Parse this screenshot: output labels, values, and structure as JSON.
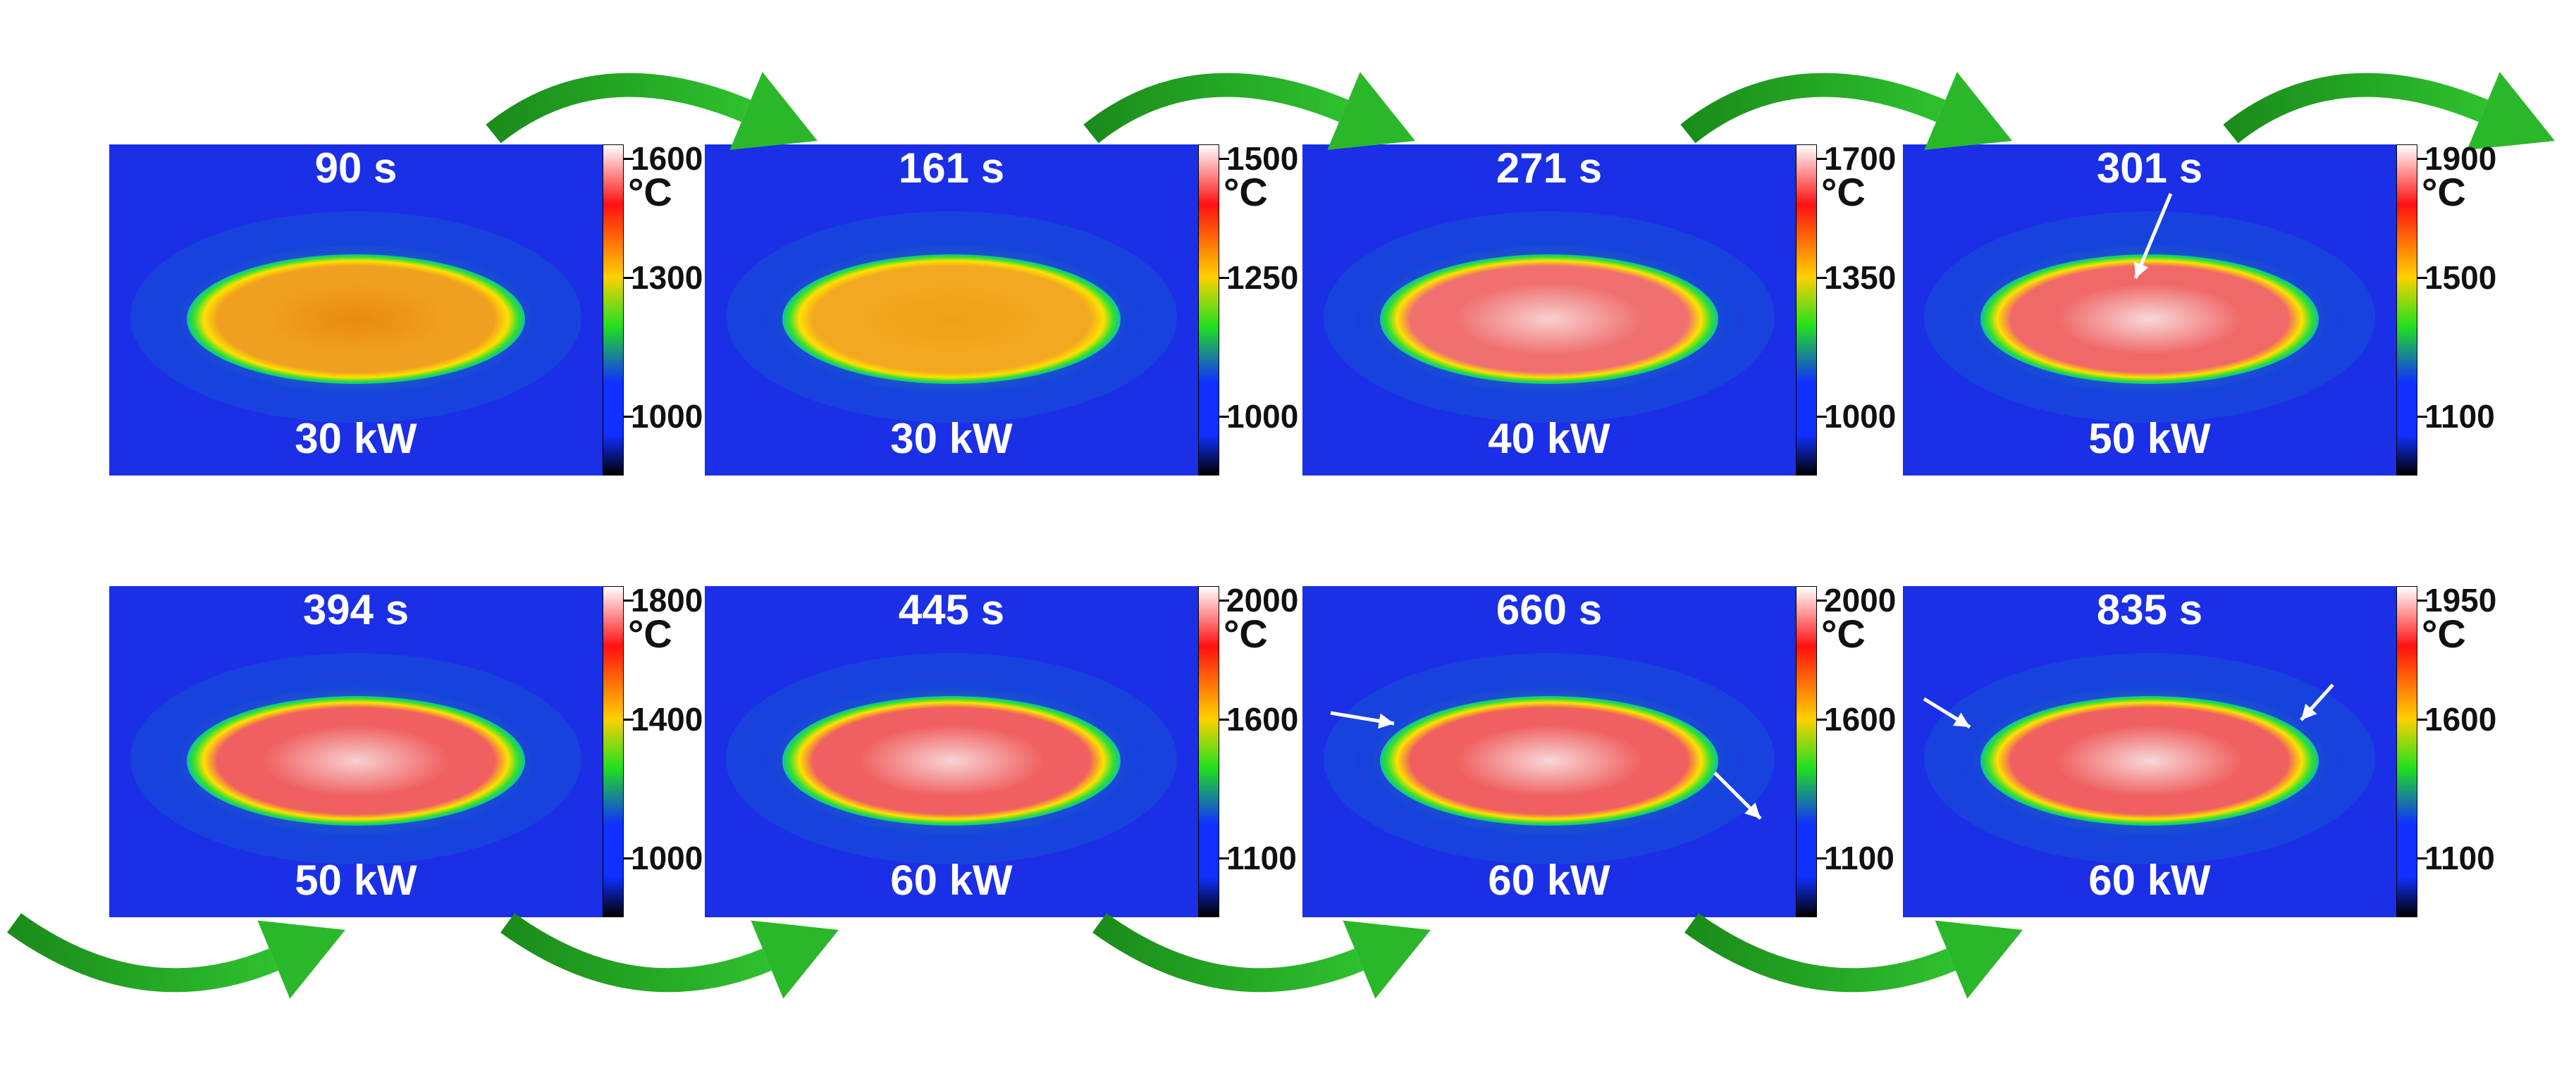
{
  "panels": [
    {
      "time": "90 s",
      "power": "30 kW",
      "unit": "°C",
      "core": "#f0a020",
      "hot": "#e88a10",
      "ticks": [
        "1600",
        "1300",
        "1000"
      ],
      "arrows": []
    },
    {
      "time": "161 s",
      "power": "30 kW",
      "unit": "°C",
      "core": "#f2a820",
      "hot": "#eea018",
      "ticks": [
        "1500",
        "1250",
        "1000"
      ],
      "arrows": []
    },
    {
      "time": "271 s",
      "power": "40 kW",
      "unit": "°C",
      "core": "#f07070",
      "hot": "#f8d0d0",
      "ticks": [
        "1700",
        "1350",
        "1000"
      ],
      "arrows": []
    },
    {
      "time": "301 s",
      "power": "50 kW",
      "unit": "°C",
      "core": "#f06868",
      "hot": "#f8d8d8",
      "ticks": [
        "1900",
        "1500",
        "1100"
      ],
      "arrows": [
        "arrow-1"
      ]
    },
    {
      "time": "394 s",
      "power": "50 kW",
      "unit": "°C",
      "core": "#f06060",
      "hot": "#f8d0d0",
      "ticks": [
        "1800",
        "1400",
        "1000"
      ],
      "arrows": []
    },
    {
      "time": "445 s",
      "power": "60 kW",
      "unit": "°C",
      "core": "#f06060",
      "hot": "#f8d4d4",
      "ticks": [
        "2000",
        "1600",
        "1100"
      ],
      "arrows": []
    },
    {
      "time": "660 s",
      "power": "60 kW",
      "unit": "°C",
      "core": "#f06060",
      "hot": "#f8d8d8",
      "ticks": [
        "2000",
        "1600",
        "1100"
      ],
      "arrows": [
        "arrow-1",
        "arrow-2"
      ]
    },
    {
      "time": "835 s",
      "power": "60 kW",
      "unit": "°C",
      "core": "#f06060",
      "hot": "#f8d8d8",
      "ticks": [
        "1950",
        "1600",
        "1100"
      ],
      "arrows": [
        "arrow-1",
        "arrow-2"
      ]
    }
  ],
  "colors": {
    "background_blue": "#1a2fe6",
    "arrow_green": "#22aa22",
    "colorbar": [
      "#ffffff",
      "#ff1010",
      "#ffd000",
      "#20e020",
      "#1030ff",
      "#000000"
    ]
  }
}
